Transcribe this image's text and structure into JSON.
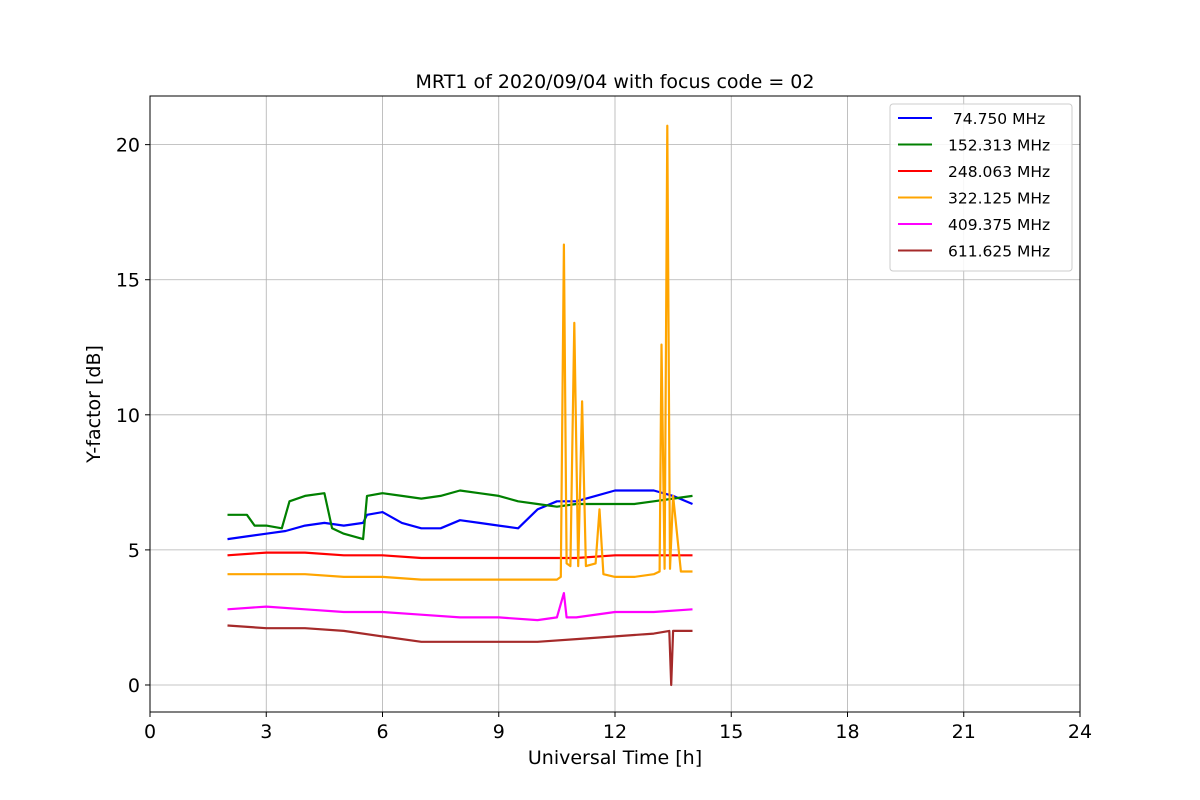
{
  "chart_data": {
    "type": "line",
    "title": "MRT1 of 2020/09/04 with focus code = 02",
    "xlabel": "Universal Time [h]",
    "ylabel": "Y-factor [dB]",
    "xlim": [
      0,
      24
    ],
    "ylim": [
      -1.0,
      21.8
    ],
    "xticks": [
      0,
      3,
      6,
      9,
      12,
      15,
      18,
      21,
      24
    ],
    "yticks": [
      0,
      5,
      10,
      15,
      20
    ],
    "grid": true,
    "legend_position": "top-right",
    "series": [
      {
        "name": " 74.750 MHz",
        "color": "#0000ff",
        "x": [
          2.0,
          2.5,
          3.0,
          3.5,
          4.0,
          4.5,
          5.0,
          5.5,
          5.6,
          6.0,
          6.5,
          7.0,
          7.5,
          8.0,
          8.5,
          9.0,
          9.5,
          10.0,
          10.5,
          11.0,
          11.5,
          12.0,
          12.5,
          13.0,
          13.5,
          14.0
        ],
        "y": [
          5.4,
          5.5,
          5.6,
          5.7,
          5.9,
          6.0,
          5.9,
          6.0,
          6.3,
          6.4,
          6.0,
          5.8,
          5.8,
          6.1,
          6.0,
          5.9,
          5.8,
          6.5,
          6.8,
          6.8,
          7.0,
          7.2,
          7.2,
          7.2,
          7.0,
          6.7
        ]
      },
      {
        "name": "152.313 MHz",
        "color": "#008000",
        "x": [
          2.0,
          2.5,
          2.7,
          3.0,
          3.4,
          3.6,
          4.0,
          4.5,
          4.7,
          5.0,
          5.5,
          5.6,
          6.0,
          6.5,
          7.0,
          7.5,
          8.0,
          8.5,
          9.0,
          9.5,
          10.0,
          10.5,
          11.0,
          11.5,
          12.0,
          12.5,
          13.0,
          13.5,
          14.0
        ],
        "y": [
          6.3,
          6.3,
          5.9,
          5.9,
          5.8,
          6.8,
          7.0,
          7.1,
          5.8,
          5.6,
          5.4,
          7.0,
          7.1,
          7.0,
          6.9,
          7.0,
          7.2,
          7.1,
          7.0,
          6.8,
          6.7,
          6.6,
          6.7,
          6.7,
          6.7,
          6.7,
          6.8,
          6.9,
          7.0
        ]
      },
      {
        "name": "248.063 MHz",
        "color": "#ff0000",
        "x": [
          2.0,
          3.0,
          4.0,
          5.0,
          6.0,
          7.0,
          8.0,
          9.0,
          10.0,
          11.0,
          12.0,
          13.0,
          14.0
        ],
        "y": [
          4.8,
          4.9,
          4.9,
          4.8,
          4.8,
          4.7,
          4.7,
          4.7,
          4.7,
          4.7,
          4.8,
          4.8,
          4.8
        ]
      },
      {
        "name": "322.125 MHz",
        "color": "#ffa500",
        "x": [
          2.0,
          3.0,
          4.0,
          5.0,
          6.0,
          7.0,
          8.0,
          9.0,
          10.0,
          10.5,
          10.6,
          10.68,
          10.75,
          10.85,
          10.95,
          11.05,
          11.15,
          11.25,
          11.5,
          11.6,
          11.7,
          12.0,
          12.5,
          13.0,
          13.15,
          13.2,
          13.28,
          13.35,
          13.42,
          13.5,
          13.7,
          14.0
        ],
        "y": [
          4.1,
          4.1,
          4.1,
          4.0,
          4.0,
          3.9,
          3.9,
          3.9,
          3.9,
          3.9,
          4.0,
          16.3,
          4.5,
          4.4,
          13.4,
          4.4,
          10.5,
          4.4,
          4.5,
          6.5,
          4.1,
          4.0,
          4.0,
          4.1,
          4.2,
          12.6,
          4.3,
          20.7,
          4.3,
          7.0,
          4.2,
          4.2
        ]
      },
      {
        "name": "409.375 MHz",
        "color": "#ff00ff",
        "x": [
          2.0,
          3.0,
          4.0,
          5.0,
          6.0,
          7.0,
          8.0,
          9.0,
          10.0,
          10.5,
          10.68,
          10.75,
          11.0,
          12.0,
          13.0,
          14.0
        ],
        "y": [
          2.8,
          2.9,
          2.8,
          2.7,
          2.7,
          2.6,
          2.5,
          2.5,
          2.4,
          2.5,
          3.4,
          2.5,
          2.5,
          2.7,
          2.7,
          2.8
        ]
      },
      {
        "name": "611.625 MHz",
        "color": "#a52a2a",
        "x": [
          2.0,
          3.0,
          4.0,
          5.0,
          6.0,
          7.0,
          8.0,
          9.0,
          10.0,
          11.0,
          12.0,
          13.0,
          13.4,
          13.45,
          13.5,
          14.0
        ],
        "y": [
          2.2,
          2.1,
          2.1,
          2.0,
          1.8,
          1.6,
          1.6,
          1.6,
          1.6,
          1.7,
          1.8,
          1.9,
          2.0,
          0.0,
          2.0,
          2.0
        ]
      }
    ]
  }
}
